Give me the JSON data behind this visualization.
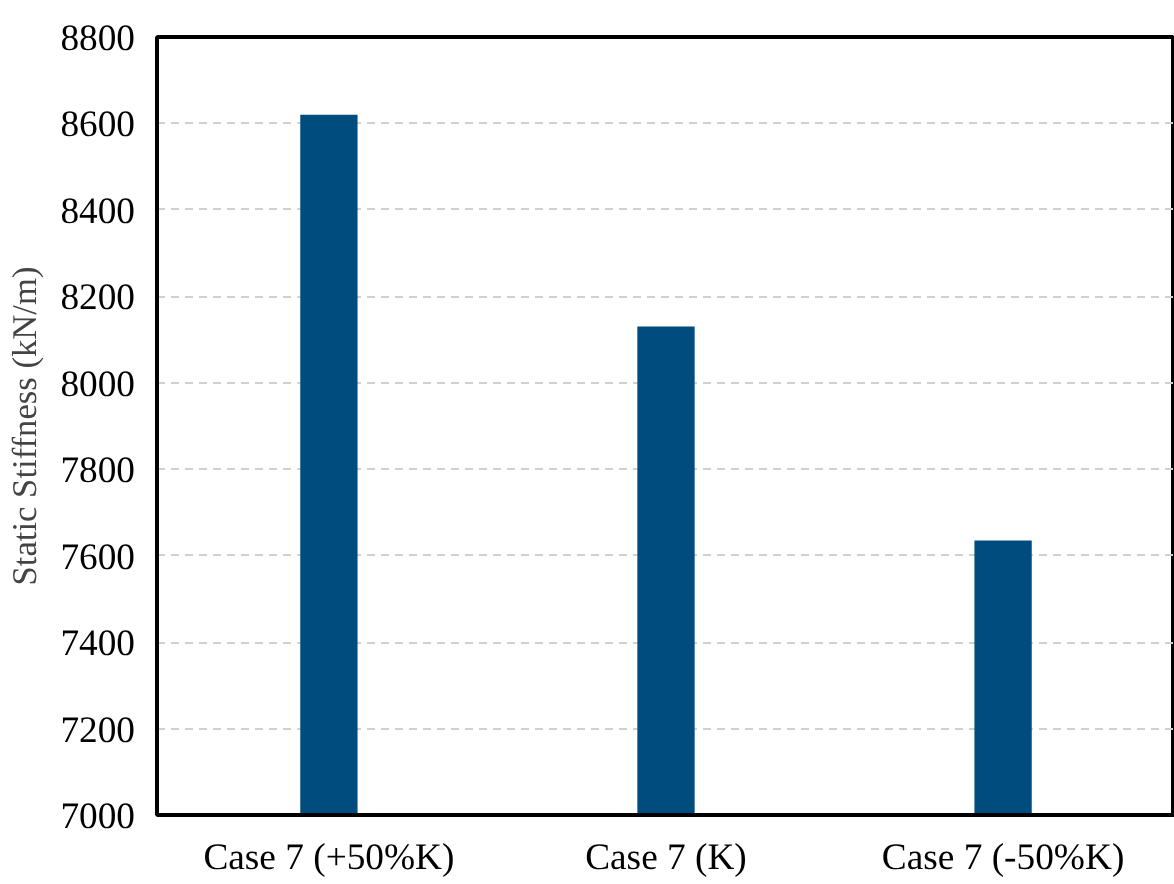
{
  "chart_data": {
    "type": "bar",
    "ylabel": "Static Stiffness (kN/m)",
    "categories": [
      "Case 7 (+50%K)",
      "Case 7 (K)",
      "Case 7 (-50%K)"
    ],
    "values": [
      8620,
      8130,
      7635
    ],
    "color": "#004c7f",
    "ylim": [
      7000,
      8800
    ],
    "yticks": [
      7000,
      7200,
      7400,
      7600,
      7800,
      8000,
      8200,
      8400,
      8600,
      8800
    ],
    "grid": "y"
  }
}
